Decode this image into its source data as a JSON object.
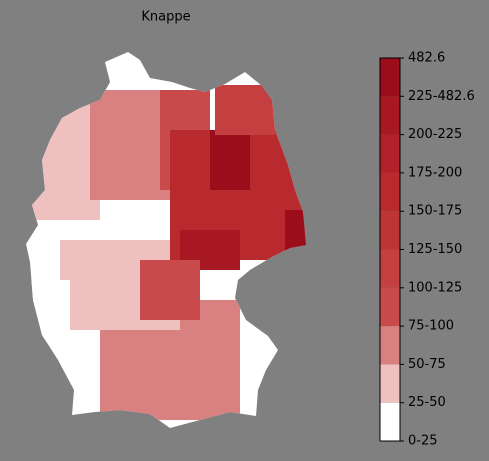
{
  "title": "Knappe",
  "colorbar": {
    "labels": [
      "0-25",
      "25-50",
      "50-75",
      "75-100",
      "100-125",
      "125-150",
      "150-175",
      "175-200",
      "200-225",
      "225-482.6",
      "482.6"
    ],
    "colors": [
      "#ffffff",
      "#efc0c0",
      "#d98080",
      "#c94a4a",
      "#c44040",
      "#bf3535",
      "#b92a2f",
      "#b22029",
      "#a81822",
      "#9c0d1c"
    ]
  }
}
